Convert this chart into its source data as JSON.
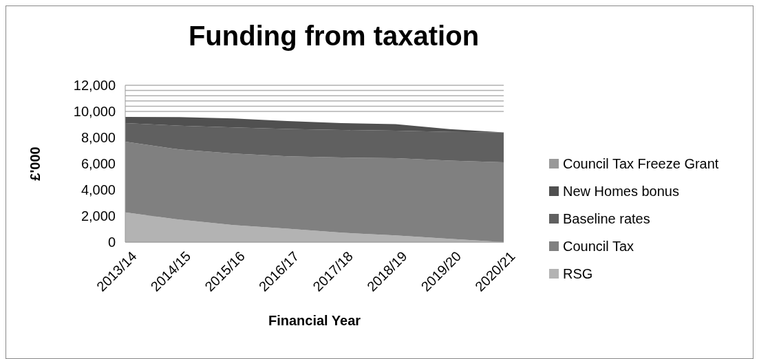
{
  "chart_data": {
    "type": "area",
    "stacked": true,
    "title": "Funding from taxation",
    "xlabel": "Financial Year",
    "ylabel": "£'000",
    "categories": [
      "2013/14",
      "2014/15",
      "2015/16",
      "2016/17",
      "2017/18",
      "2018/19",
      "2019/20",
      "2020/21"
    ],
    "series": [
      {
        "name": "RSG",
        "color": "#b3b3b3",
        "values": [
          2280,
          1720,
          1300,
          1020,
          720,
          510,
          250,
          0
        ]
      },
      {
        "name": "Council Tax",
        "color": "#808080",
        "values": [
          5400,
          5370,
          5470,
          5540,
          5750,
          5910,
          5990,
          6100
        ]
      },
      {
        "name": "Baseline rates",
        "color": "#606060",
        "values": [
          1420,
          1820,
          2000,
          2100,
          2110,
          2110,
          2200,
          2290
        ]
      },
      {
        "name": "New Homes bonus",
        "color": "#505050",
        "values": [
          480,
          650,
          690,
          600,
          520,
          490,
          210,
          0
        ]
      },
      {
        "name": "Council Tax Freeze Grant",
        "color": "#999999",
        "values": [
          null,
          null,
          null,
          null,
          null,
          null,
          null,
          null
        ]
      }
    ],
    "ylim": [
      0,
      12000
    ],
    "yticks": [
      {
        "value": 0,
        "label": "0"
      },
      {
        "value": 2000,
        "label": "2,000"
      },
      {
        "value": 4000,
        "label": "4,000"
      },
      {
        "value": 6000,
        "label": "6,000"
      },
      {
        "value": 8000,
        "label": "8,000"
      },
      {
        "value": 10000,
        "label": "10,000"
      },
      {
        "value": 10400,
        "label": null
      },
      {
        "value": 10800,
        "label": null
      },
      {
        "value": 11200,
        "label": null
      },
      {
        "value": 11600,
        "label": null
      },
      {
        "value": 12000,
        "label": "12,000"
      }
    ],
    "grid": "y",
    "legend": "right"
  }
}
